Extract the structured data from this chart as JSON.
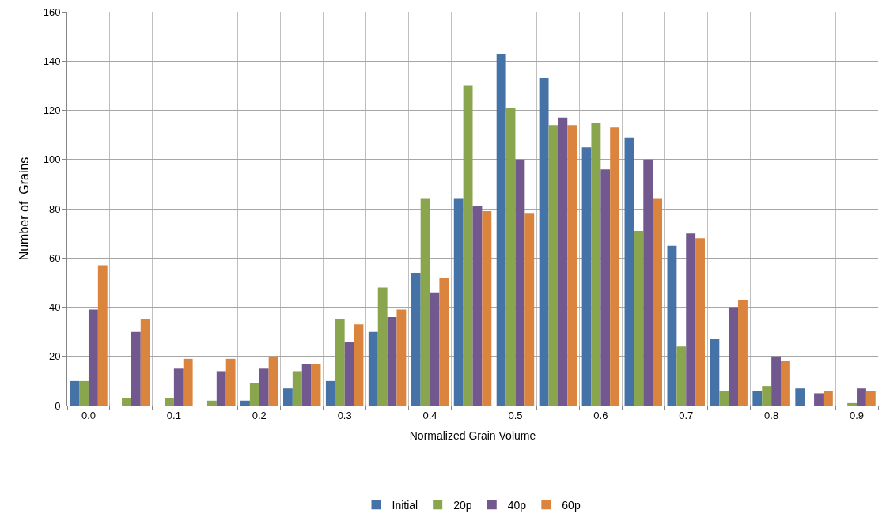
{
  "chart_data": {
    "type": "bar",
    "xlabel": "Normalized Grain Volume",
    "ylabel": "Number of  Grains",
    "categories": [
      "0.0",
      null,
      "0.1",
      null,
      "0.2",
      null,
      "0.3",
      null,
      "0.4",
      null,
      "0.5",
      null,
      "0.6",
      null,
      "0.7",
      null,
      "0.8",
      null,
      "0.9"
    ],
    "series": [
      {
        "name": "Initial",
        "color": "#4572a7",
        "values": [
          10,
          0,
          0,
          0,
          2,
          7,
          10,
          30,
          54,
          84,
          143,
          133,
          105,
          109,
          65,
          27,
          6,
          7,
          0
        ]
      },
      {
        "name": "20p",
        "color": "#89a54e",
        "values": [
          10,
          3,
          3,
          2,
          9,
          14,
          35,
          48,
          84,
          130,
          121,
          114,
          115,
          71,
          24,
          6,
          8,
          0,
          1
        ]
      },
      {
        "name": "40p",
        "color": "#71588f",
        "values": [
          39,
          30,
          15,
          14,
          15,
          17,
          26,
          36,
          46,
          81,
          100,
          117,
          96,
          100,
          70,
          40,
          20,
          5,
          7
        ]
      },
      {
        "name": "60p",
        "color": "#db843d",
        "values": [
          57,
          35,
          19,
          19,
          20,
          17,
          33,
          39,
          52,
          79,
          78,
          114,
          113,
          84,
          68,
          43,
          18,
          6,
          6
        ]
      }
    ],
    "ylim": [
      0,
      160
    ],
    "yticks": [
      0,
      20,
      40,
      60,
      80,
      100,
      120,
      140,
      160
    ],
    "grid": true,
    "legend": "bottom"
  }
}
